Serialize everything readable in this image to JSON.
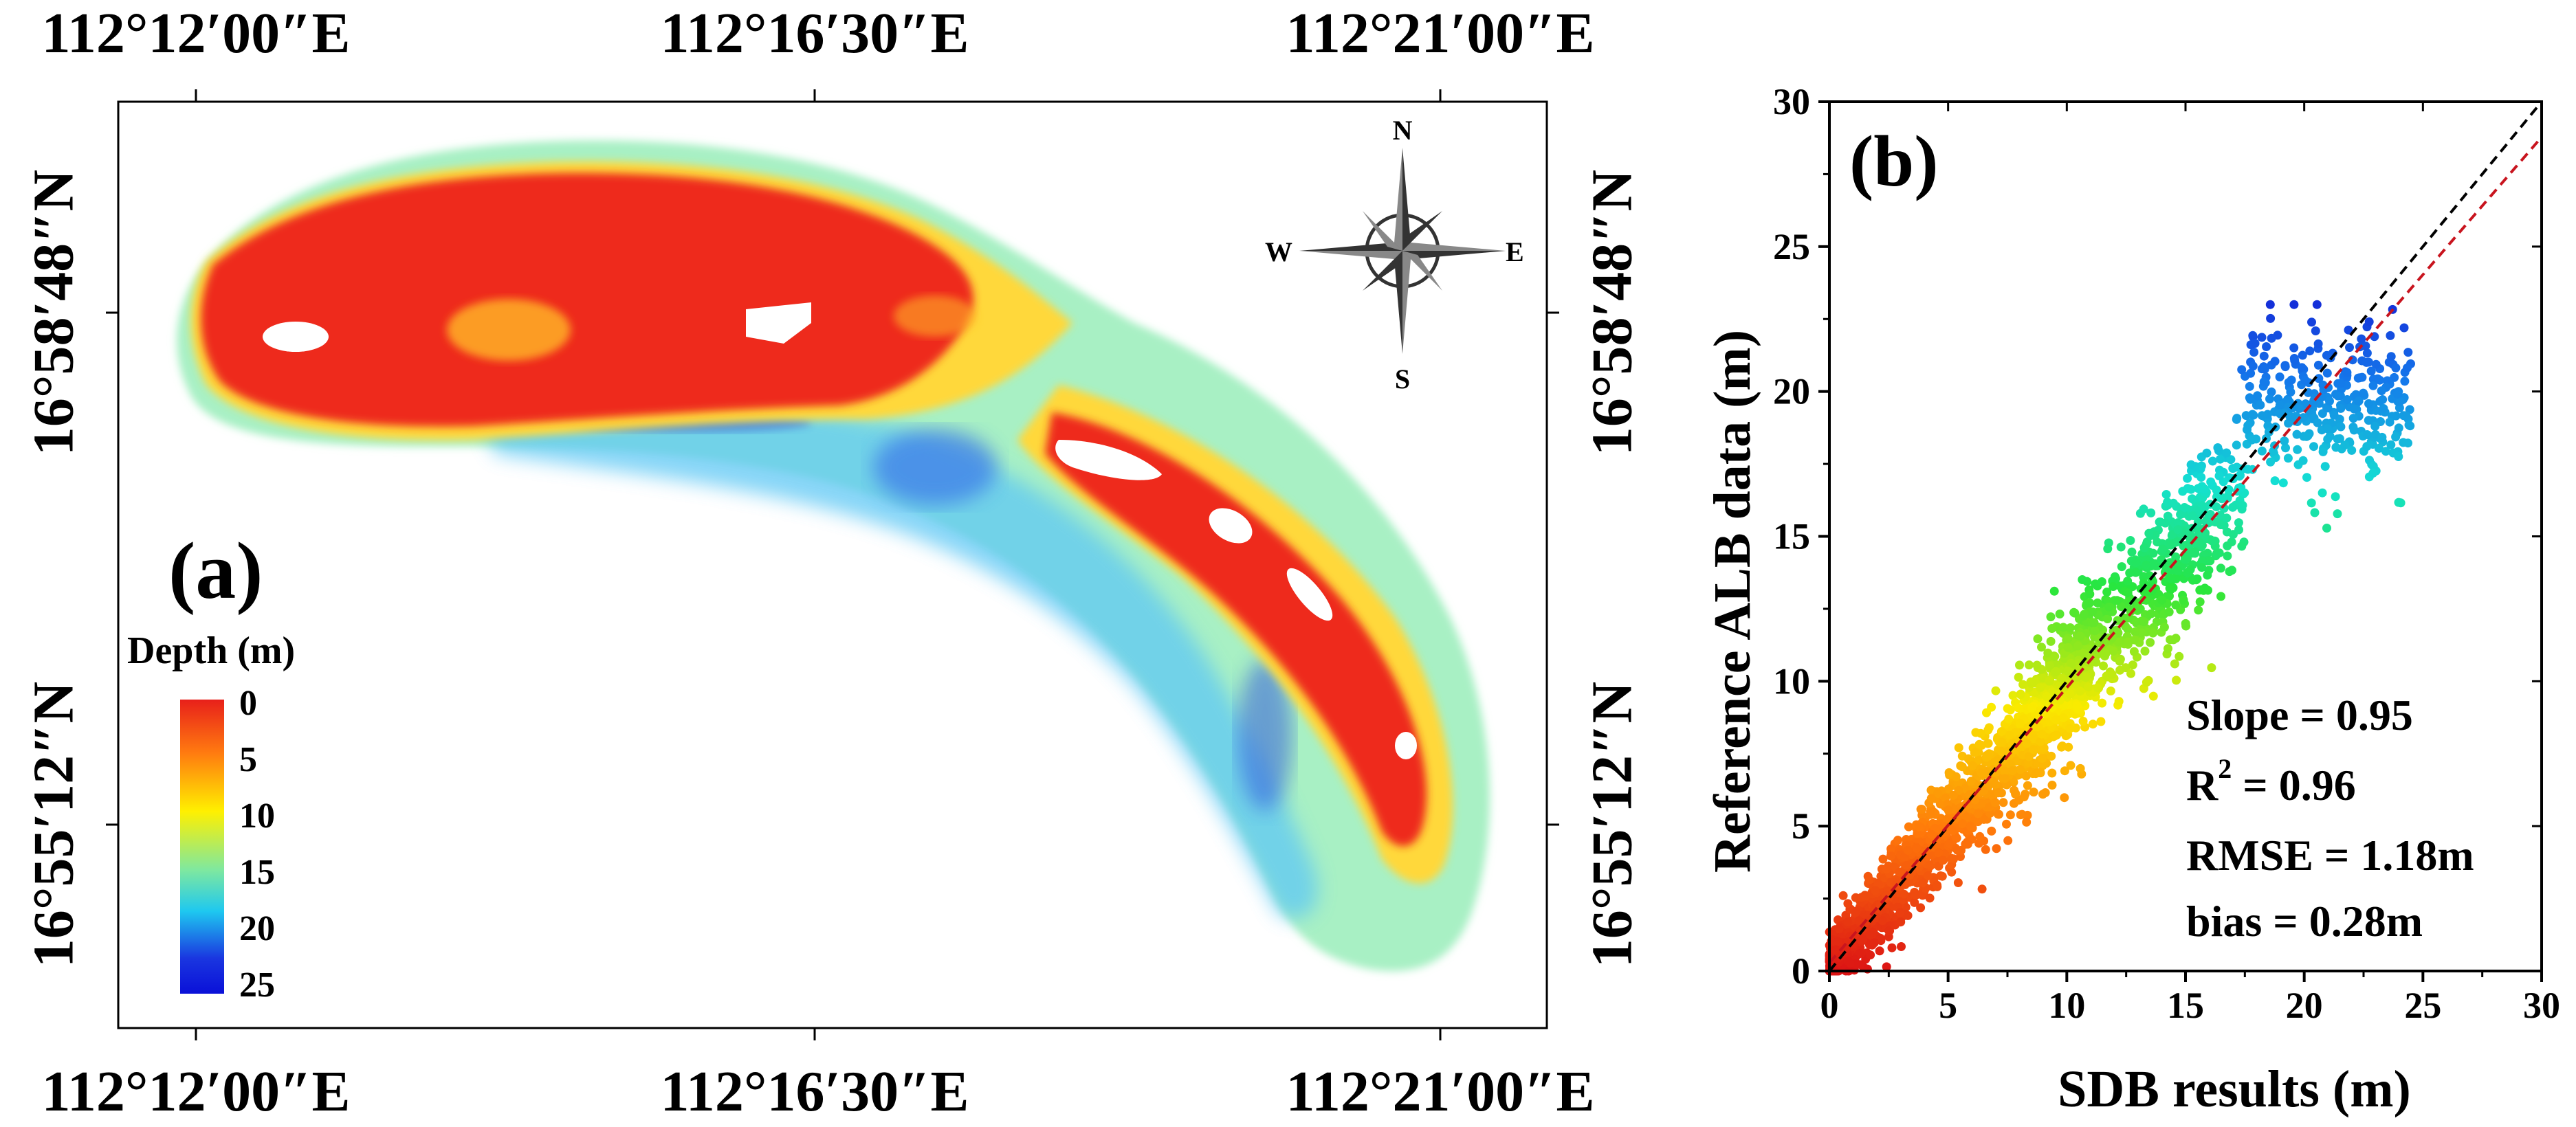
{
  "map_panel": {
    "panel_label": "(a)",
    "top_lon_labels": [
      "112°12′00″E",
      "112°16′30″E",
      "112°21′00″E"
    ],
    "bottom_lon_labels": [
      "112°12′00″E",
      "112°16′30″E",
      "112°21′00″E"
    ],
    "left_lat_labels": [
      "16°58′48″N",
      "16°55′12″N"
    ],
    "right_lat_labels": [
      "16°58′48″N",
      "16°55′12″N"
    ],
    "compass": {
      "north": "N",
      "south": "S",
      "east": "E",
      "west": "W"
    },
    "legend": {
      "title": "Depth (m)",
      "ticks": [
        "0",
        "5",
        "10",
        "15",
        "20",
        "25"
      ],
      "colors": [
        "#e8201a",
        "#ff7a10",
        "#fff000",
        "#7ee8a0",
        "#1ec8f0",
        "#1a36e0",
        "#0a10d8"
      ]
    },
    "colors": {
      "shallow": "#ee2b1a",
      "mid": "#ffe13a",
      "deep_edge": "#a8f0c4",
      "deep": "#5ab8ff"
    }
  },
  "scatter_panel": {
    "panel_label": "(b)",
    "stats": [
      "Slope = 0.95",
      "R² = 0.96",
      "RMSE = 1.18m",
      "bias = 0.28m"
    ],
    "stats_parts": {
      "slope": "Slope = 0.95",
      "r2_prefix": "R",
      "r2_sup": "2",
      "r2_suffix": " = 0.96",
      "rmse": "RMSE = 1.18m",
      "bias": "bias = 0.28m"
    }
  },
  "chart_data": {
    "type": "scatter",
    "xlabel": "SDB results (m)",
    "ylabel": "Reference ALB data (m)",
    "xlim": [
      0,
      30
    ],
    "ylim": [
      0,
      30
    ],
    "xticks": [
      0,
      5,
      10,
      15,
      20,
      25,
      30
    ],
    "yticks": [
      0,
      5,
      10,
      15,
      20,
      25,
      30
    ],
    "lines": [
      {
        "style": "dashed",
        "color": "#000000",
        "slope": 1.0,
        "intercept": 0
      },
      {
        "style": "dashed",
        "color": "#c8141e",
        "slope": 0.95,
        "intercept": 0.28
      }
    ],
    "point_cloud": {
      "x_range": [
        0,
        24.5
      ],
      "y_range": [
        0,
        23
      ],
      "approx_slope": 0.95,
      "colormap": "jet (red at 0 m, blue at 25 m)"
    },
    "grid": false
  }
}
